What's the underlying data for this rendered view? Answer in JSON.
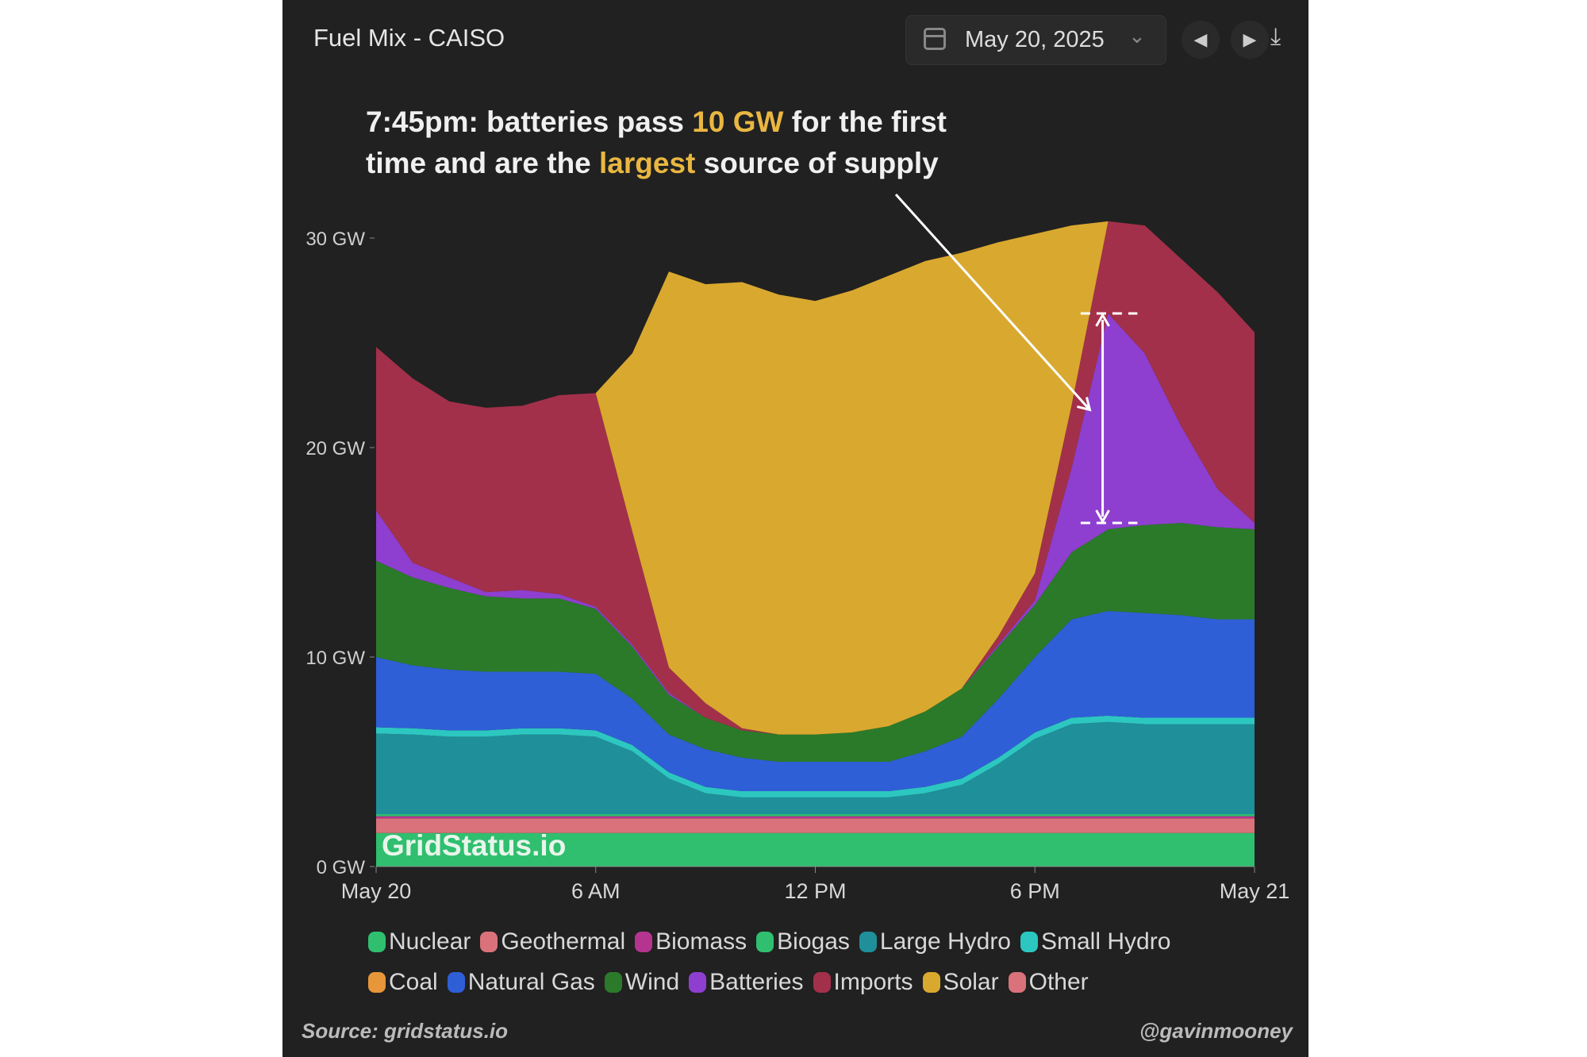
{
  "header": {
    "title": "Fuel Mix - CAISO",
    "date": "May 20, 2025",
    "prev": "◀",
    "next": "▶",
    "download": "⤓"
  },
  "annotation": {
    "line1_a": "7:45pm: batteries pass ",
    "line1_hl": "10 GW",
    "line1_b": " for the first",
    "line2_a": "time and are the ",
    "line2_hl": "largest",
    "line2_b": " source of supply"
  },
  "watermark": "GridStatus.io",
  "footer": {
    "source": "Source: gridstatus.io",
    "handle": "@gavinmooney"
  },
  "chart_data": {
    "type": "area",
    "stacked": true,
    "title": "Fuel Mix - CAISO",
    "ylabel": "GW",
    "ylim": [
      0,
      30
    ],
    "y_ticks": [
      "0 GW",
      "10 GW",
      "20 GW",
      "30 GW"
    ],
    "y_tick_values": [
      0,
      10,
      20,
      30
    ],
    "x_ticks": [
      "May 20",
      "6 AM",
      "12 PM",
      "6 PM",
      "May 21"
    ],
    "x_tick_values": [
      0,
      6,
      12,
      18,
      24
    ],
    "x": [
      0,
      1,
      2,
      3,
      4,
      5,
      6,
      7,
      8,
      9,
      10,
      11,
      12,
      13,
      14,
      15,
      16,
      17,
      18,
      19,
      20,
      21,
      22,
      23,
      24
    ],
    "series": [
      {
        "name": "Nuclear",
        "color": "#2fbf6f",
        "values": [
          1.6,
          1.6,
          1.6,
          1.6,
          1.6,
          1.6,
          1.6,
          1.6,
          1.6,
          1.6,
          1.6,
          1.6,
          1.6,
          1.6,
          1.6,
          1.6,
          1.6,
          1.6,
          1.6,
          1.6,
          1.6,
          1.6,
          1.6,
          1.6,
          1.6
        ]
      },
      {
        "name": "Geothermal",
        "color": "#d9727a",
        "values": [
          0.7,
          0.7,
          0.7,
          0.7,
          0.7,
          0.7,
          0.7,
          0.7,
          0.7,
          0.7,
          0.7,
          0.7,
          0.7,
          0.7,
          0.7,
          0.7,
          0.7,
          0.7,
          0.7,
          0.7,
          0.7,
          0.7,
          0.7,
          0.7,
          0.7
        ]
      },
      {
        "name": "Biomass",
        "color": "#b5348f",
        "values": [
          0.1,
          0.1,
          0.1,
          0.1,
          0.1,
          0.1,
          0.1,
          0.1,
          0.1,
          0.1,
          0.1,
          0.1,
          0.1,
          0.1,
          0.1,
          0.1,
          0.1,
          0.1,
          0.1,
          0.1,
          0.1,
          0.1,
          0.1,
          0.1,
          0.1
        ]
      },
      {
        "name": "Biogas",
        "color": "#2fbf6f",
        "values": [
          0.1,
          0.1,
          0.1,
          0.1,
          0.1,
          0.1,
          0.1,
          0.1,
          0.1,
          0.1,
          0.1,
          0.1,
          0.1,
          0.1,
          0.1,
          0.1,
          0.1,
          0.1,
          0.1,
          0.1,
          0.1,
          0.1,
          0.1,
          0.1,
          0.1
        ]
      },
      {
        "name": "Large Hydro",
        "color": "#1f8f9a",
        "values": [
          3.85,
          3.8,
          3.7,
          3.7,
          3.8,
          3.8,
          3.7,
          3.0,
          1.7,
          1.0,
          0.8,
          0.8,
          0.8,
          0.8,
          0.8,
          1.0,
          1.4,
          2.4,
          3.6,
          4.3,
          4.4,
          4.3,
          4.3,
          4.3,
          4.3
        ]
      },
      {
        "name": "Small Hydro",
        "color": "#2cc7c0",
        "values": [
          0.3,
          0.3,
          0.3,
          0.3,
          0.3,
          0.3,
          0.3,
          0.3,
          0.3,
          0.3,
          0.3,
          0.3,
          0.3,
          0.3,
          0.3,
          0.3,
          0.3,
          0.3,
          0.3,
          0.3,
          0.3,
          0.3,
          0.3,
          0.3,
          0.3
        ]
      },
      {
        "name": "Coal",
        "color": "#e8963a",
        "values": [
          0,
          0,
          0,
          0,
          0,
          0,
          0,
          0,
          0,
          0,
          0,
          0,
          0,
          0,
          0,
          0,
          0,
          0,
          0,
          0,
          0,
          0,
          0,
          0,
          0
        ]
      },
      {
        "name": "Natural Gas",
        "color": "#2f5fd6",
        "values": [
          3.35,
          3.0,
          2.9,
          2.8,
          2.7,
          2.7,
          2.7,
          2.2,
          1.8,
          1.8,
          1.6,
          1.4,
          1.4,
          1.4,
          1.4,
          1.7,
          2.0,
          2.8,
          3.6,
          4.7,
          5.0,
          5.0,
          4.9,
          4.7,
          4.7
        ]
      },
      {
        "name": "Wind",
        "color": "#2b7a2a",
        "values": [
          4.6,
          4.2,
          3.9,
          3.6,
          3.5,
          3.5,
          3.1,
          2.5,
          1.9,
          1.5,
          1.3,
          1.3,
          1.3,
          1.4,
          1.7,
          1.9,
          2.3,
          2.5,
          2.5,
          3.2,
          3.9,
          4.2,
          4.4,
          4.4,
          4.3
        ]
      },
      {
        "name": "Batteries",
        "color": "#8e3fcf",
        "values": [
          2.4,
          0.7,
          0.5,
          0.2,
          0.4,
          0.2,
          0.1,
          0.1,
          0.1,
          0,
          0,
          0,
          0,
          0,
          0,
          0,
          0,
          0.1,
          0.2,
          4.0,
          10.3,
          8.2,
          4.6,
          1.8,
          0.3
        ]
      },
      {
        "name": "Imports",
        "color": "#a3304a",
        "values": [
          7.8,
          8.8,
          8.4,
          8.8,
          8.8,
          9.5,
          10.2,
          5.4,
          1.2,
          0.7,
          0.1,
          0,
          0,
          0,
          0,
          0,
          0,
          0.4,
          1.3,
          3.0,
          4.4,
          6.1,
          8.0,
          9.4,
          9.1
        ]
      },
      {
        "name": "Solar",
        "color": "#d9a82e",
        "values": [
          0,
          0,
          0,
          0,
          0,
          0,
          0,
          8.5,
          18.9,
          20.0,
          21.3,
          21.0,
          20.7,
          21.1,
          21.5,
          21.5,
          20.8,
          18.8,
          16.2,
          8.6,
          0,
          0,
          0,
          0,
          0
        ]
      },
      {
        "name": "Other",
        "color": "#d9727a",
        "values": [
          0,
          0,
          0,
          0,
          0,
          0,
          0,
          0,
          0,
          0,
          0,
          0,
          0,
          0,
          0,
          0,
          0,
          0,
          0,
          0,
          0,
          0,
          0,
          0,
          0
        ]
      }
    ],
    "legend_rows": [
      [
        "Nuclear",
        "Geothermal",
        "Biomass",
        "Biogas",
        "Large Hydro",
        "Small Hydro"
      ],
      [
        "Coal",
        "Natural Gas",
        "Wind",
        "Batteries",
        "Imports",
        "Solar",
        "Other"
      ]
    ],
    "legend_placement": "bottom",
    "grid": false,
    "annotation_range_gw": [
      16.4,
      26.4
    ]
  }
}
